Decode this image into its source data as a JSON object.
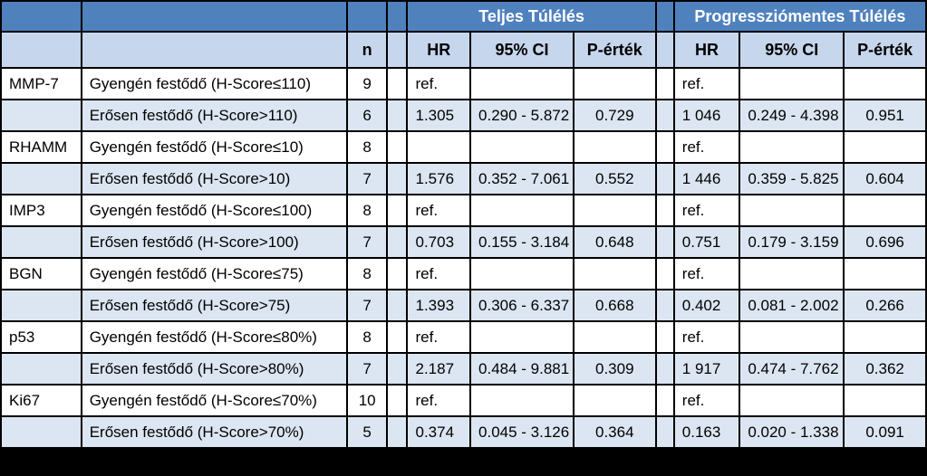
{
  "headers": {
    "group1": "Teljes Túlélés",
    "group2": "Progressziómentes Túlélés",
    "n": "n",
    "hr": "HR",
    "ci": "95% CI",
    "p": "P-érték"
  },
  "rows": [
    {
      "marker": "MMP-7",
      "group": "Gyengén festődő (H-Score≤110)",
      "n": "9",
      "hr1": "ref.",
      "ci1": "",
      "p1": "",
      "hr2": "ref.",
      "ci2": "",
      "p2": ""
    },
    {
      "marker": "",
      "group": "Erősen festődő (H-Score>110)",
      "n": "6",
      "hr1": "1.305",
      "ci1": "0.290 - 5.872",
      "p1": "0.729",
      "hr2": "1 046",
      "ci2": "0.249 - 4.398",
      "p2": "0.951"
    },
    {
      "marker": "RHAMM",
      "group": "Gyengén festődő (H-Score≤10)",
      "n": "8",
      "hr1": "",
      "ci1": "",
      "p1": "",
      "hr2": "ref.",
      "ci2": "",
      "p2": ""
    },
    {
      "marker": "",
      "group": "Erősen festődő (H-Score>10)",
      "n": "7",
      "hr1": "1.576",
      "ci1": "0.352 - 7.061",
      "p1": "0.552",
      "hr2": "1 446",
      "ci2": "0.359 - 5.825",
      "p2": "0.604"
    },
    {
      "marker": "IMP3",
      "group": "Gyengén festődő (H-Score≤100)",
      "n": "8",
      "hr1": "ref.",
      "ci1": "",
      "p1": "",
      "hr2": "ref.",
      "ci2": "",
      "p2": ""
    },
    {
      "marker": "",
      "group": "Erősen festődő (H-Score>100)",
      "n": "7",
      "hr1": "0.703",
      "ci1": "0.155 - 3.184",
      "p1": "0.648",
      "hr2": "0.751",
      "ci2": "0.179 - 3.159",
      "p2": "0.696"
    },
    {
      "marker": "BGN",
      "group": "Gyengén festődő (H-Score≤75)",
      "n": "8",
      "hr1": "ref.",
      "ci1": "",
      "p1": "",
      "hr2": "ref.",
      "ci2": "",
      "p2": ""
    },
    {
      "marker": "",
      "group": "Erősen festődő (H-Score>75)",
      "n": "7",
      "hr1": "1.393",
      "ci1": "0.306 - 6.337",
      "p1": "0.668",
      "hr2": "0.402",
      "ci2": "0.081 - 2.002",
      "p2": "0.266"
    },
    {
      "marker": "p53",
      "group": "Gyengén festődő (H-Score≤80%)",
      "n": "8",
      "hr1": "ref.",
      "ci1": "",
      "p1": "",
      "hr2": "ref.",
      "ci2": "",
      "p2": ""
    },
    {
      "marker": "",
      "group": "Erősen festődő (H-Score>80%)",
      "n": "7",
      "hr1": "2.187",
      "ci1": "0.484 - 9.881",
      "p1": "0.309",
      "hr2": "1 917",
      "ci2": "0.474 - 7.762",
      "p2": "0.362"
    },
    {
      "marker": "Ki67",
      "group": "Gyengén festődő (H-Score≤70%)",
      "n": "10",
      "hr1": "ref.",
      "ci1": "",
      "p1": "",
      "hr2": "ref.",
      "ci2": "",
      "p2": ""
    },
    {
      "marker": "",
      "group": "Erősen festődő (H-Score>70%)",
      "n": "5",
      "hr1": "0.374",
      "ci1": "0.045 - 3.126",
      "p1": "0.364",
      "hr2": "0.163",
      "ci2": "0.020 - 1.338",
      "p2": "0.091"
    }
  ]
}
